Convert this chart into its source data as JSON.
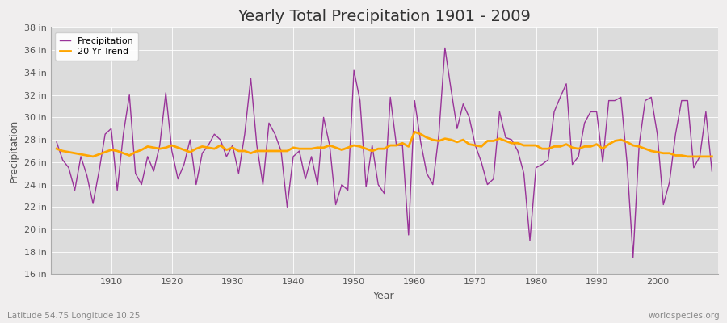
{
  "title": "Yearly Total Precipitation 1901 - 2009",
  "xlabel": "Year",
  "ylabel": "Precipitation",
  "subtitle_left": "Latitude 54.75 Longitude 10.25",
  "subtitle_right": "worldspecies.org",
  "years": [
    1901,
    1902,
    1903,
    1904,
    1905,
    1906,
    1907,
    1908,
    1909,
    1910,
    1911,
    1912,
    1913,
    1914,
    1915,
    1916,
    1917,
    1918,
    1919,
    1920,
    1921,
    1922,
    1923,
    1924,
    1925,
    1926,
    1927,
    1928,
    1929,
    1930,
    1931,
    1932,
    1933,
    1934,
    1935,
    1936,
    1937,
    1938,
    1939,
    1940,
    1941,
    1942,
    1943,
    1944,
    1945,
    1946,
    1947,
    1948,
    1949,
    1950,
    1951,
    1952,
    1953,
    1954,
    1955,
    1956,
    1957,
    1958,
    1959,
    1960,
    1961,
    1962,
    1963,
    1964,
    1965,
    1966,
    1967,
    1968,
    1969,
    1970,
    1971,
    1972,
    1973,
    1974,
    1975,
    1976,
    1977,
    1978,
    1979,
    1980,
    1981,
    1982,
    1983,
    1984,
    1985,
    1986,
    1987,
    1988,
    1989,
    1990,
    1991,
    1992,
    1993,
    1994,
    1995,
    1996,
    1997,
    1998,
    1999,
    2000,
    2001,
    2002,
    2003,
    2004,
    2005,
    2006,
    2007,
    2008,
    2009
  ],
  "precip": [
    27.8,
    26.2,
    25.5,
    23.5,
    26.5,
    24.8,
    22.3,
    25.2,
    28.5,
    29.0,
    23.5,
    28.5,
    32.0,
    25.0,
    24.0,
    26.5,
    25.2,
    27.5,
    32.2,
    27.0,
    24.5,
    25.8,
    28.0,
    24.0,
    26.8,
    27.5,
    28.5,
    28.0,
    26.5,
    27.5,
    25.0,
    28.5,
    33.5,
    27.5,
    24.0,
    29.5,
    28.5,
    27.0,
    22.0,
    26.5,
    27.0,
    24.5,
    26.5,
    24.0,
    30.0,
    27.5,
    22.2,
    24.0,
    23.5,
    34.2,
    31.5,
    23.8,
    27.5,
    24.0,
    23.2,
    31.8,
    27.5,
    27.5,
    19.5,
    31.5,
    27.8,
    25.0,
    24.0,
    28.5,
    36.2,
    32.5,
    29.0,
    31.2,
    30.0,
    27.5,
    26.0,
    24.0,
    24.5,
    30.5,
    28.2,
    28.0,
    27.0,
    25.0,
    19.0,
    25.5,
    25.8,
    26.2,
    30.5,
    31.8,
    33.0,
    25.8,
    26.5,
    29.5,
    30.5,
    30.5,
    26.0,
    31.5,
    31.5,
    31.8,
    26.0,
    17.5,
    27.5,
    31.5,
    31.8,
    28.5,
    22.2,
    24.2,
    28.5,
    31.5,
    31.5,
    25.5,
    26.5,
    30.5,
    25.2
  ],
  "trend": [
    27.2,
    27.0,
    26.9,
    26.8,
    26.7,
    26.6,
    26.5,
    26.7,
    26.9,
    27.1,
    27.0,
    26.8,
    26.6,
    26.9,
    27.1,
    27.4,
    27.3,
    27.2,
    27.3,
    27.5,
    27.3,
    27.1,
    26.9,
    27.2,
    27.4,
    27.3,
    27.2,
    27.5,
    27.1,
    27.3,
    27.0,
    27.0,
    26.8,
    27.0,
    27.0,
    27.0,
    27.0,
    27.0,
    27.0,
    27.3,
    27.2,
    27.2,
    27.2,
    27.3,
    27.3,
    27.5,
    27.3,
    27.1,
    27.3,
    27.5,
    27.4,
    27.2,
    27.0,
    27.2,
    27.2,
    27.5,
    27.5,
    27.7,
    27.4,
    28.7,
    28.5,
    28.2,
    28.0,
    27.9,
    28.1,
    28.0,
    27.8,
    28.0,
    27.6,
    27.5,
    27.4,
    27.9,
    27.9,
    28.1,
    27.9,
    27.7,
    27.7,
    27.5,
    27.5,
    27.5,
    27.2,
    27.2,
    27.4,
    27.4,
    27.6,
    27.3,
    27.2,
    27.4,
    27.4,
    27.6,
    27.2,
    27.6,
    27.9,
    28.0,
    27.8,
    27.5,
    27.4,
    27.2,
    27.0,
    26.9,
    26.8,
    26.8,
    26.6,
    26.6,
    26.5,
    26.5,
    26.5,
    26.5,
    26.5
  ],
  "precip_color": "#993399",
  "trend_color": "#FFA500",
  "fig_bg_color": "#f0eeee",
  "plot_bg_color": "#dcdcdc",
  "ylim": [
    16,
    38
  ],
  "yticks": [
    16,
    18,
    20,
    22,
    24,
    26,
    28,
    30,
    32,
    34,
    36,
    38
  ],
  "ytick_labels": [
    "16 in",
    "18 in",
    "20 in",
    "22 in",
    "24 in",
    "26 in",
    "28 in",
    "30 in",
    "32 in",
    "34 in",
    "36 in",
    "38 in"
  ],
  "xlim": [
    1900,
    2010
  ],
  "xticks": [
    1910,
    1920,
    1930,
    1940,
    1950,
    1960,
    1970,
    1980,
    1990,
    2000
  ],
  "title_fontsize": 14,
  "axis_label_fontsize": 9,
  "tick_fontsize": 8,
  "legend_fontsize": 8,
  "subtitle_fontsize": 7.5
}
